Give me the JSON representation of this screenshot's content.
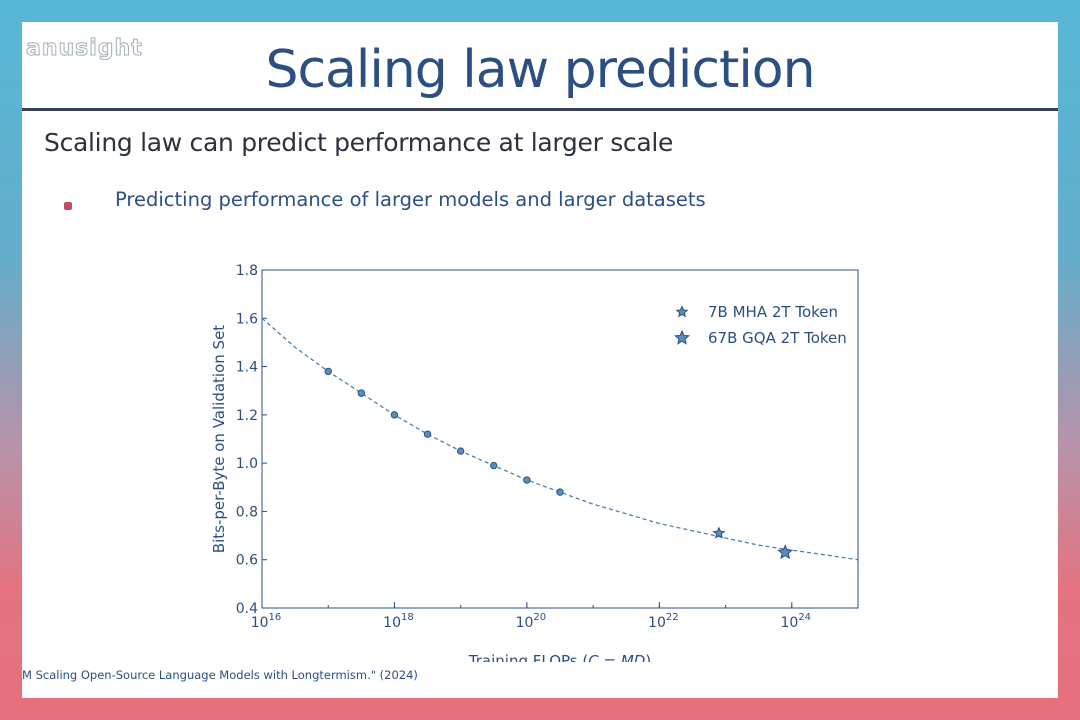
{
  "slide": {
    "logo_text": "anusight",
    "title": "Scaling law prediction",
    "heading": "Scaling law can predict performance at larger scale",
    "bullet": "Predicting performance of larger models and larger datasets",
    "citation": "M Scaling Open-Source Language Models with Longtermism.\" (2024)",
    "accent_color": "#2b4f83",
    "bullet_color": "#c24a62"
  },
  "chart_data": {
    "type": "scatter",
    "xscale": "log",
    "xlim": [
      1e+16,
      1e+25
    ],
    "ylim": [
      0.4,
      1.8
    ],
    "xticks": [
      {
        "exp": 16,
        "label": "10",
        "sup": "16"
      },
      {
        "exp": 18,
        "label": "10",
        "sup": "18"
      },
      {
        "exp": 20,
        "label": "10",
        "sup": "20"
      },
      {
        "exp": 22,
        "label": "10",
        "sup": "22"
      },
      {
        "exp": 24,
        "label": "10",
        "sup": "24"
      }
    ],
    "yticks": [
      "0.4",
      "0.6",
      "0.8",
      "1.0",
      "1.2",
      "1.4",
      "1.6",
      "1.8"
    ],
    "ylabel": "Bits-per-Byte on Validation Set",
    "xlabel_parts": [
      "Training FLOPs (",
      "C",
      " = ",
      "MD",
      ")"
    ],
    "grid": false,
    "legend_position": "top-right",
    "fit_line": {
      "style": "dashed",
      "x_exponents": [
        16,
        16.5,
        17,
        17.5,
        18,
        18.5,
        19,
        19.5,
        20,
        20.5,
        21,
        21.5,
        22,
        22.5,
        23,
        23.5,
        24,
        24.5,
        25
      ],
      "y": [
        1.6,
        1.48,
        1.38,
        1.29,
        1.2,
        1.12,
        1.05,
        0.99,
        0.93,
        0.88,
        0.83,
        0.79,
        0.75,
        0.72,
        0.69,
        0.66,
        0.64,
        0.62,
        0.6
      ]
    },
    "series": [
      {
        "marker": "circle",
        "x_exponents": [
          17.0,
          17.5,
          18.0,
          18.5,
          19.0,
          19.5,
          20.0,
          20.5
        ],
        "y": [
          1.38,
          1.29,
          1.2,
          1.12,
          1.05,
          0.99,
          0.93,
          0.88
        ]
      },
      {
        "name": "7B MHA 2T Token",
        "marker": "star-small",
        "x_exponents": [
          22.9
        ],
        "y": [
          0.71
        ]
      },
      {
        "name": "67B GQA 2T Token",
        "marker": "star-large",
        "x_exponents": [
          23.9
        ],
        "y": [
          0.63
        ]
      }
    ],
    "colors": {
      "axis": "#2b4f83",
      "points": "#5b8fb9",
      "point_edge": "#2b4f83",
      "line": "#4a82b0"
    }
  }
}
